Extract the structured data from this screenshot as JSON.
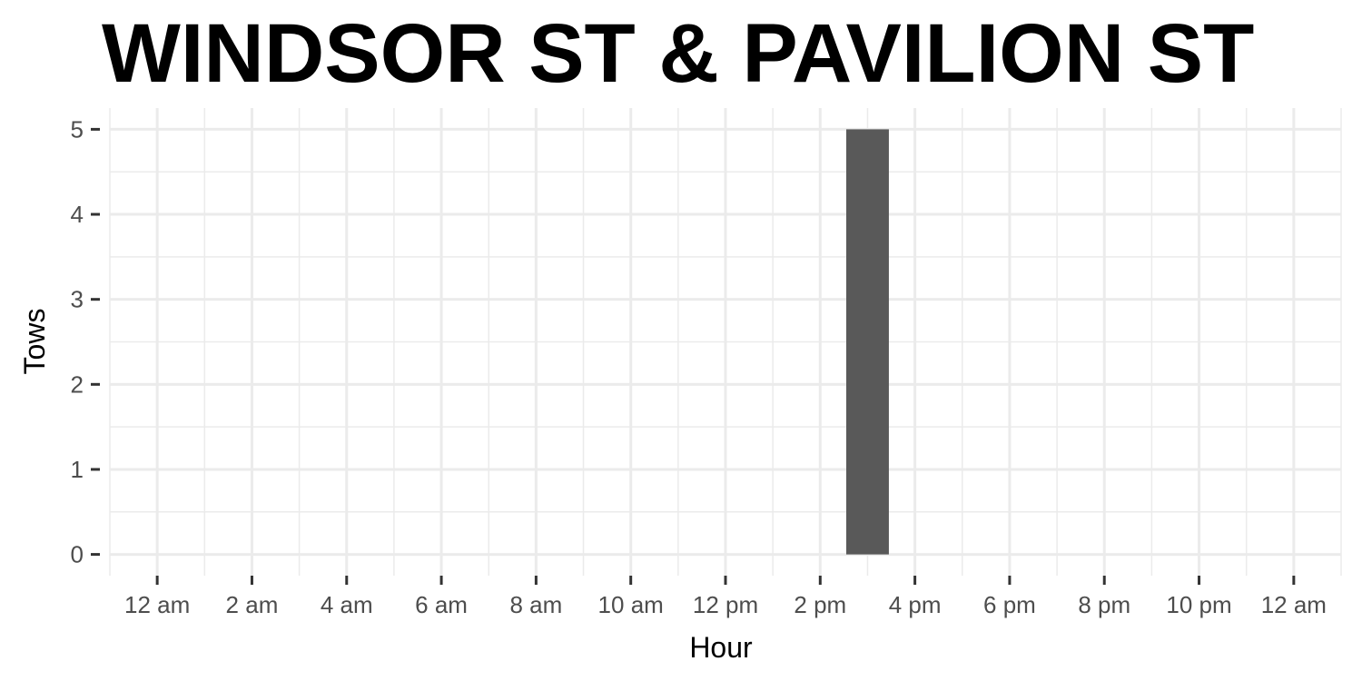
{
  "chart_data": {
    "type": "bar",
    "title": "WINDSOR ST & PAVILION ST",
    "xlabel": "Hour",
    "ylabel": "Tows",
    "x_tick_labels": [
      "12 am",
      "2 am",
      "4 am",
      "6 am",
      "8 am",
      "10 am",
      "12 pm",
      "2 pm",
      "4 pm",
      "6 pm",
      "8 pm",
      "10 pm",
      "12 am"
    ],
    "x_tick_hours": [
      0,
      2,
      4,
      6,
      8,
      10,
      12,
      14,
      16,
      18,
      20,
      22,
      24
    ],
    "y_tick_labels": [
      "0",
      "1",
      "2",
      "3",
      "4",
      "5"
    ],
    "y_tick_values": [
      0,
      1,
      2,
      3,
      4,
      5
    ],
    "xlim": [
      -1,
      25
    ],
    "ylim": [
      -0.25,
      5.25
    ],
    "bars": [
      {
        "hour": 15,
        "value": 5
      }
    ],
    "bar_color": "#595959",
    "grid": true,
    "grid_color": "#ebebeb",
    "legend": "none"
  }
}
